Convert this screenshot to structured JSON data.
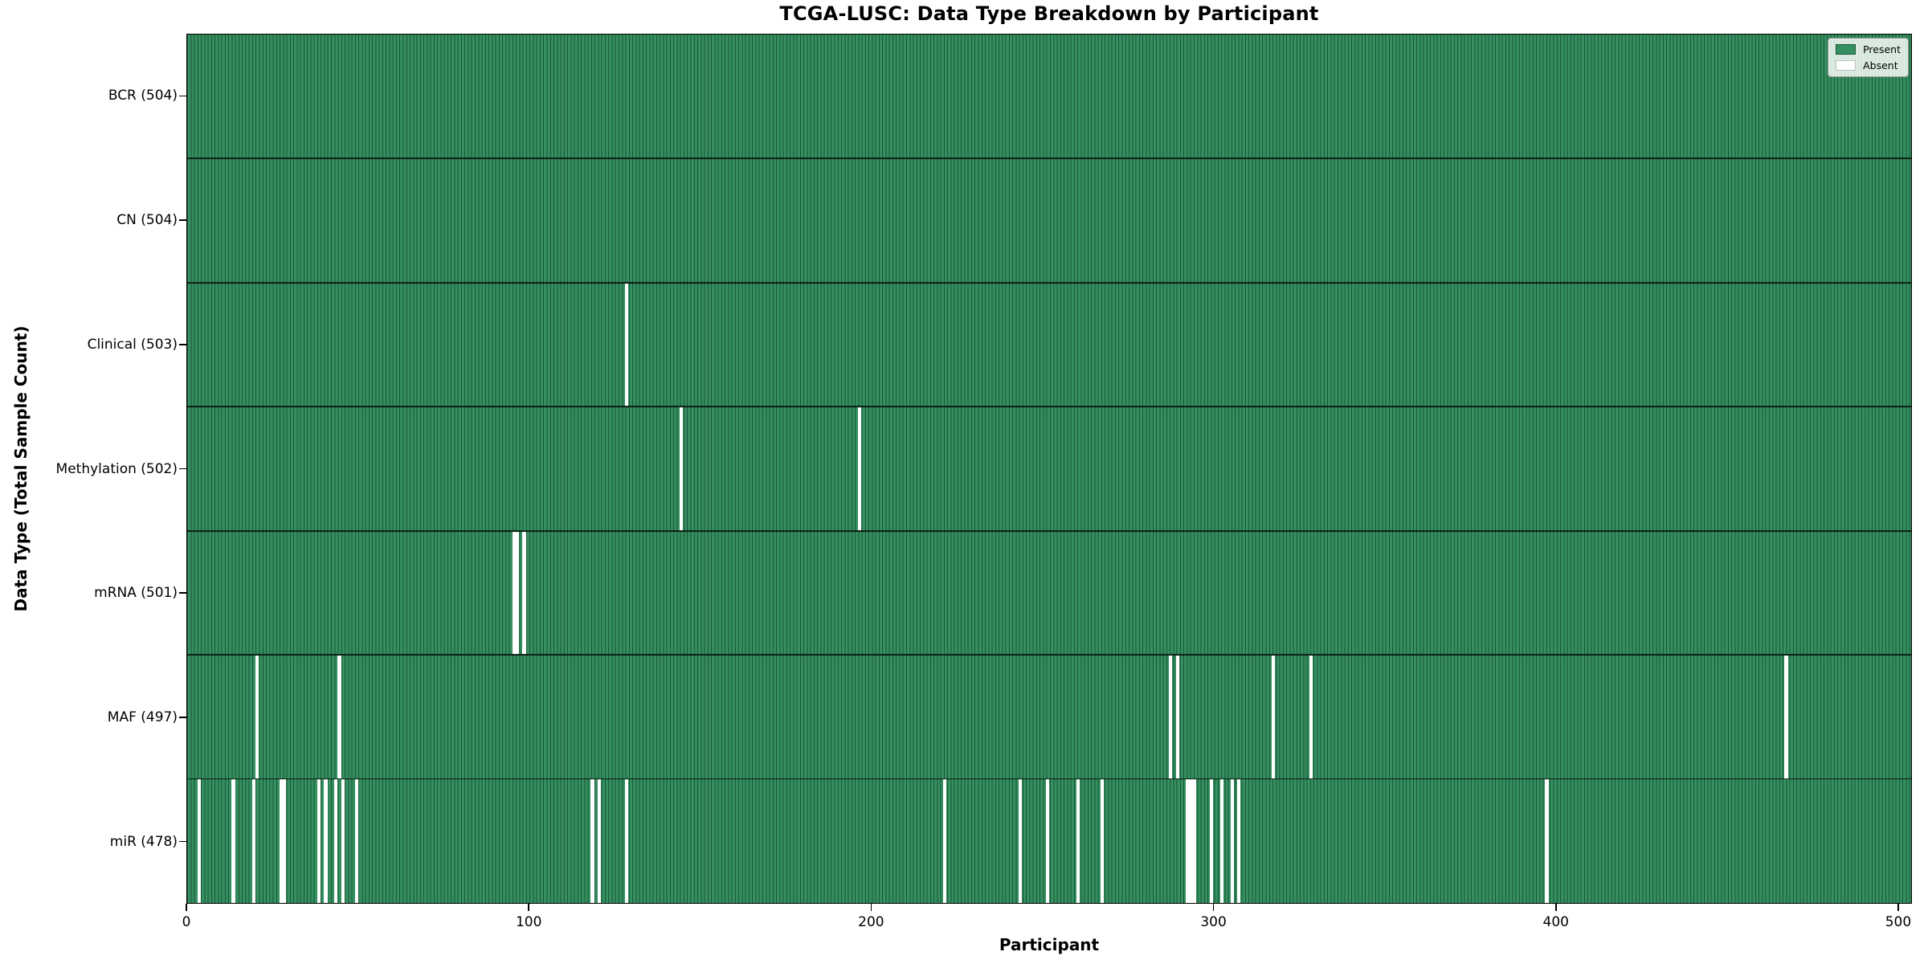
{
  "title": "TCGA-LUSC: Data Type Breakdown by Participant",
  "xlabel": "Participant",
  "ylabel": "Data Type (Total Sample Count)",
  "legend": {
    "present_label": "Present",
    "absent_label": "Absent"
  },
  "colors": {
    "present_fill": "#349060",
    "present_edge": "#1c5434",
    "absent_fill": "#ffffff",
    "axis": "#000000",
    "background": "#ffffff"
  },
  "chart_data": {
    "type": "heatmap",
    "title": "TCGA-LUSC: Data Type Breakdown by Participant",
    "xlabel": "Participant",
    "ylabel": "Data Type (Total Sample Count)",
    "legend_entries": [
      "Present",
      "Absent"
    ],
    "legend_position": "upper right",
    "grid": false,
    "total_participants": 504,
    "xlim": [
      0,
      504
    ],
    "x_ticks": [
      0,
      100,
      200,
      300,
      400,
      500
    ],
    "rows": [
      {
        "name": "BCR",
        "label": "BCR (504)",
        "present_count": 504,
        "absent_participants": []
      },
      {
        "name": "CN",
        "label": "CN (504)",
        "present_count": 504,
        "absent_participants": []
      },
      {
        "name": "Clinical",
        "label": "Clinical (503)",
        "present_count": 503,
        "absent_participants": [
          128
        ]
      },
      {
        "name": "Methylation",
        "label": "Methylation (502)",
        "present_count": 502,
        "absent_participants": [
          144,
          196
        ]
      },
      {
        "name": "mRNA",
        "label": "mRNA (501)",
        "present_count": 501,
        "absent_participants": [
          95,
          96,
          98
        ]
      },
      {
        "name": "MAF",
        "label": "MAF (497)",
        "present_count": 497,
        "absent_participants": [
          20,
          44,
          287,
          289,
          317,
          328,
          467
        ]
      },
      {
        "name": "miR",
        "label": "miR (478)",
        "present_count": 478,
        "absent_participants": [
          3,
          13,
          19,
          27,
          28,
          38,
          40,
          43,
          45,
          49,
          118,
          120,
          128,
          221,
          243,
          251,
          260,
          267,
          292,
          293,
          294,
          299,
          302,
          305,
          307,
          397
        ]
      }
    ]
  }
}
